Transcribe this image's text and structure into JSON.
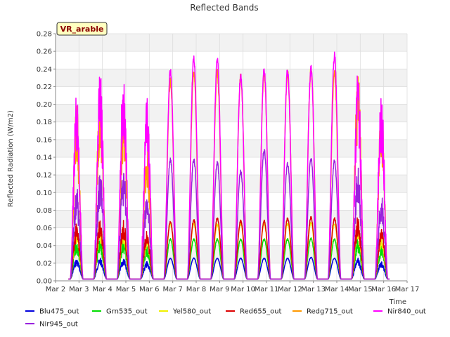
{
  "chart_data": {
    "type": "line",
    "title": "Reflected Bands",
    "ylabel": "Reflected Radiation (W/m2)",
    "xlabel": "Time",
    "badge": "VR_arable",
    "ylim": [
      0,
      0.28
    ],
    "yticks": [
      "0.00",
      "0.02",
      "0.04",
      "0.06",
      "0.08",
      "0.10",
      "0.12",
      "0.14",
      "0.16",
      "0.18",
      "0.20",
      "0.22",
      "0.24",
      "0.26",
      "0.28"
    ],
    "xticks": [
      "Mar 2",
      "Mar 3",
      "Mar 4",
      "Mar 5",
      "Mar 6",
      "Mar 7",
      "Mar 8",
      "Mar 9",
      "Mar 10",
      "Mar 11",
      "Mar 12",
      "Mar 13",
      "Mar 14",
      "Mar 15",
      "Mar 16",
      "Mar 17"
    ],
    "x_range_days": [
      2,
      17
    ],
    "day_peaks": [
      2.9,
      3.9,
      4.9,
      5.9,
      6.9,
      7.9,
      8.9,
      9.9,
      10.9,
      11.9,
      12.9,
      13.9,
      14.9,
      15.9
    ],
    "grid": true,
    "legend_position": "bottom",
    "series": [
      {
        "name": "Blu475_out",
        "color": "#0000dd",
        "peaks": [
          0.025,
          0.026,
          0.025,
          0.022,
          0.026,
          0.026,
          0.026,
          0.026,
          0.026,
          0.026,
          0.027,
          0.026,
          0.026,
          0.022
        ]
      },
      {
        "name": "Grn535_out",
        "color": "#00dd00",
        "peaks": [
          0.046,
          0.048,
          0.046,
          0.04,
          0.048,
          0.048,
          0.048,
          0.048,
          0.048,
          0.048,
          0.049,
          0.048,
          0.048,
          0.04
        ]
      },
      {
        "name": "Yel580_out",
        "color": "#f0f000",
        "peaks": [
          0.062,
          0.065,
          0.063,
          0.055,
          0.066,
          0.066,
          0.065,
          0.066,
          0.066,
          0.066,
          0.067,
          0.066,
          0.066,
          0.055
        ]
      },
      {
        "name": "Red655_out",
        "color": "#dd0000",
        "peaks": [
          0.066,
          0.072,
          0.07,
          0.058,
          0.068,
          0.07,
          0.072,
          0.069,
          0.069,
          0.072,
          0.073,
          0.072,
          0.074,
          0.062
        ]
      },
      {
        "name": "Redg715_out",
        "color": "#ff9900",
        "peaks": [
          0.2,
          0.22,
          0.21,
          0.16,
          0.23,
          0.24,
          0.24,
          0.236,
          0.24,
          0.24,
          0.244,
          0.24,
          0.244,
          0.2
        ]
      },
      {
        "name": "Nir840_out",
        "color": "#ff00ff",
        "peaks": [
          0.215,
          0.245,
          0.245,
          0.212,
          0.242,
          0.258,
          0.255,
          0.238,
          0.243,
          0.243,
          0.245,
          0.26,
          0.245,
          0.214
        ]
      },
      {
        "name": "Nir945_out",
        "color": "#9922dd",
        "peaks": [
          0.108,
          0.125,
          0.13,
          0.1,
          0.14,
          0.14,
          0.136,
          0.126,
          0.151,
          0.135,
          0.142,
          0.138,
          0.13,
          0.1
        ]
      }
    ]
  }
}
